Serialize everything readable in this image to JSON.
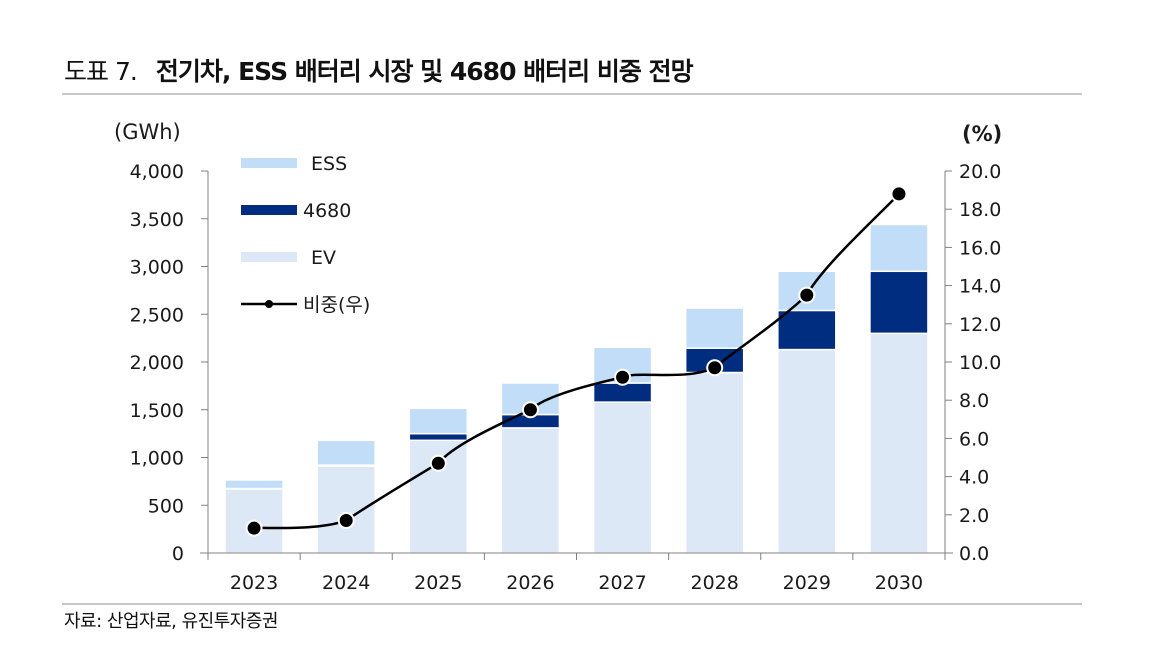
{
  "title": {
    "label": "도표 7.",
    "text": "전기차, ESS 배터리 시장 및 4680 배터리 비중 전망"
  },
  "source": "자료: 산업자료, 유진투자증권",
  "chart_data": {
    "type": "bar",
    "subtype": "stacked-bar-with-line",
    "title": "전기차, ESS 배터리 시장 및 4680 배터리 비중 전망",
    "categories": [
      "2023",
      "2024",
      "2025",
      "2026",
      "2027",
      "2028",
      "2029",
      "2030"
    ],
    "series": [
      {
        "name": "EV",
        "kind": "bar",
        "axis": "left",
        "color": "#dce8f5",
        "values": [
          670,
          910,
          1180,
          1310,
          1580,
          1890,
          2130,
          2300
        ]
      },
      {
        "name": "4680",
        "kind": "bar",
        "axis": "left",
        "color": "#002d80",
        "values": [
          5,
          10,
          70,
          140,
          200,
          255,
          410,
          650
        ]
      },
      {
        "name": "ESS",
        "kind": "bar",
        "axis": "left",
        "color": "#c2ddf8",
        "values": [
          90,
          260,
          265,
          330,
          375,
          420,
          410,
          490
        ]
      },
      {
        "name": "비중(우)",
        "kind": "line",
        "axis": "right",
        "color": "#000000",
        "values": [
          1.3,
          1.7,
          4.7,
          7.5,
          9.2,
          9.7,
          13.5,
          18.8
        ]
      }
    ],
    "left_axis": {
      "label": "(GWh)",
      "range": [
        0,
        4000
      ],
      "ticks": [
        0,
        500,
        1000,
        1500,
        2000,
        2500,
        3000,
        3500,
        4000
      ],
      "tick_labels": [
        "0",
        "500",
        "1,000",
        "1,500",
        "2,000",
        "2,500",
        "3,000",
        "3,500",
        "4,000"
      ]
    },
    "right_axis": {
      "label": "(%)",
      "range": [
        0,
        20
      ],
      "ticks": [
        0,
        2,
        4,
        6,
        8,
        10,
        12,
        14,
        16,
        18,
        20
      ],
      "tick_labels": [
        "0.0",
        "2.0",
        "4.0",
        "6.0",
        "8.0",
        "10.0",
        "12.0",
        "14.0",
        "16.0",
        "18.0",
        "20.0"
      ]
    },
    "legend": {
      "position": "top-left",
      "entries": [
        {
          "name": "ESS",
          "color": "#c2ddf8",
          "kind": "bar"
        },
        {
          "name": "4680",
          "color": "#002d80",
          "kind": "bar"
        },
        {
          "name": "EV",
          "color": "#dce8f5",
          "kind": "bar"
        },
        {
          "name": "비중(우)",
          "color": "#000000",
          "kind": "line"
        }
      ]
    },
    "grid": false
  }
}
